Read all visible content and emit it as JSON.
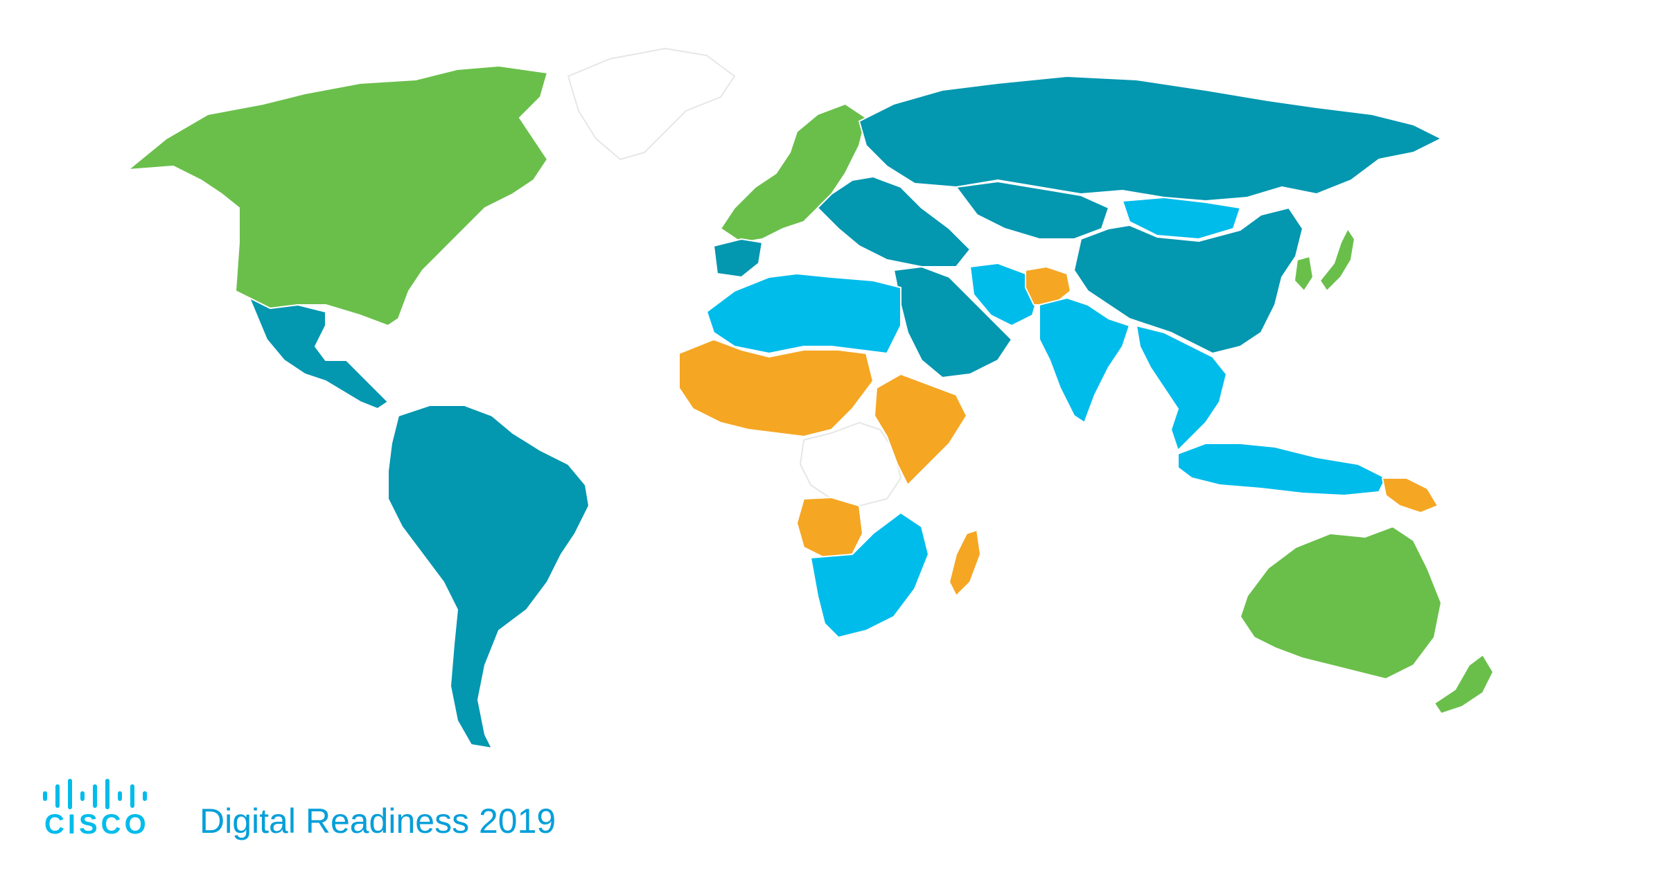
{
  "title": "Digital Readiness 2019",
  "brand": {
    "wordmark": "CISCO",
    "bars_icon": "cisco-bars-logo"
  },
  "colors": {
    "amplify": "#6abf4b",
    "accelerate": "#0397b0",
    "activate": "#00bceb",
    "activate_orange": "#f5a623",
    "no_data": "#ffffff",
    "border": "#e6e6e6"
  },
  "regions": [
    {
      "name": "North America",
      "tier": "amplify"
    },
    {
      "name": "Greenland",
      "tier": "no_data"
    },
    {
      "name": "Mexico and Central America",
      "tier": "accelerate"
    },
    {
      "name": "South America",
      "tier": "accelerate"
    },
    {
      "name": "Western Europe",
      "tier": "amplify"
    },
    {
      "name": "Russia",
      "tier": "accelerate"
    },
    {
      "name": "China",
      "tier": "accelerate"
    },
    {
      "name": "Mongolia",
      "tier": "activate"
    },
    {
      "name": "Kazakhstan",
      "tier": "accelerate"
    },
    {
      "name": "Middle East",
      "tier": "accelerate"
    },
    {
      "name": "Iran",
      "tier": "activate"
    },
    {
      "name": "Afghanistan",
      "tier": "activate_orange"
    },
    {
      "name": "India",
      "tier": "activate"
    },
    {
      "name": "Southeast Asia",
      "tier": "activate"
    },
    {
      "name": "Japan",
      "tier": "amplify"
    },
    {
      "name": "Korea",
      "tier": "amplify"
    },
    {
      "name": "Indonesia",
      "tier": "activate"
    },
    {
      "name": "Papua New Guinea",
      "tier": "activate_orange"
    },
    {
      "name": "Australia",
      "tier": "amplify"
    },
    {
      "name": "New Zealand",
      "tier": "amplify"
    },
    {
      "name": "North Africa",
      "tier": "activate"
    },
    {
      "name": "Sahel",
      "tier": "activate_orange"
    },
    {
      "name": "Central Africa",
      "tier": "no_data"
    },
    {
      "name": "East Africa",
      "tier": "activate_orange"
    },
    {
      "name": "Angola",
      "tier": "activate_orange"
    },
    {
      "name": "Southern Africa",
      "tier": "activate"
    },
    {
      "name": "Madagascar",
      "tier": "activate_orange"
    }
  ]
}
